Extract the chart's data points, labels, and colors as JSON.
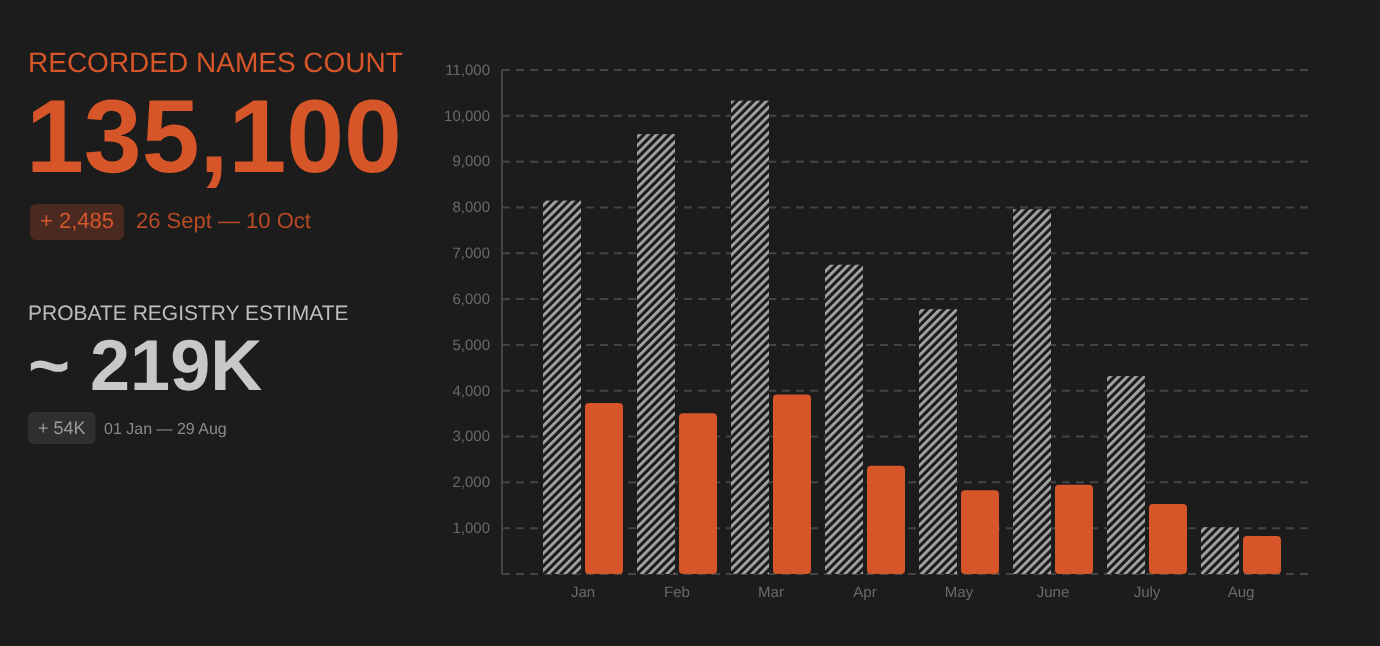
{
  "chart_data": {
    "type": "bar",
    "categories": [
      "Jan",
      "Feb",
      "Mar",
      "Apr",
      "May",
      "June",
      "July",
      "Aug"
    ],
    "series": [
      {
        "color": "#a6a6a6",
        "values": [
          8150,
          9600,
          10330,
          6750,
          5780,
          7960,
          4320,
          1020
        ]
      },
      {
        "color": "#d6562a",
        "values": [
          3730,
          3510,
          3920,
          2360,
          1830,
          1950,
          1530,
          830
        ]
      }
    ],
    "ylim": [
      0,
      11000
    ],
    "yticks": [
      {
        "value": 0,
        "label": null
      },
      {
        "value": 1000,
        "label": "1,000"
      },
      {
        "value": 2000,
        "label": "2,000"
      },
      {
        "value": 3000,
        "label": "3,000"
      },
      {
        "value": 4000,
        "label": "4,000"
      },
      {
        "value": 5000,
        "label": "5,000"
      },
      {
        "value": 6000,
        "label": "6,000"
      },
      {
        "value": 7000,
        "label": "7,000"
      },
      {
        "value": 8000,
        "label": "8,000"
      },
      {
        "value": 9000,
        "label": "9,000"
      },
      {
        "value": 10000,
        "label": "10,000"
      },
      {
        "value": 11000,
        "label": "11,000"
      }
    ],
    "grid": "y",
    "annotations": [
      "RECORDED NAMES COUNT",
      "135,100",
      "+ 2,485",
      "26 Sept — 10 Oct",
      "PROBATE REGISTRY ESTIMATE",
      "~ 219K",
      "+ 54K",
      "01 Jan — 29 Aug"
    ]
  }
}
